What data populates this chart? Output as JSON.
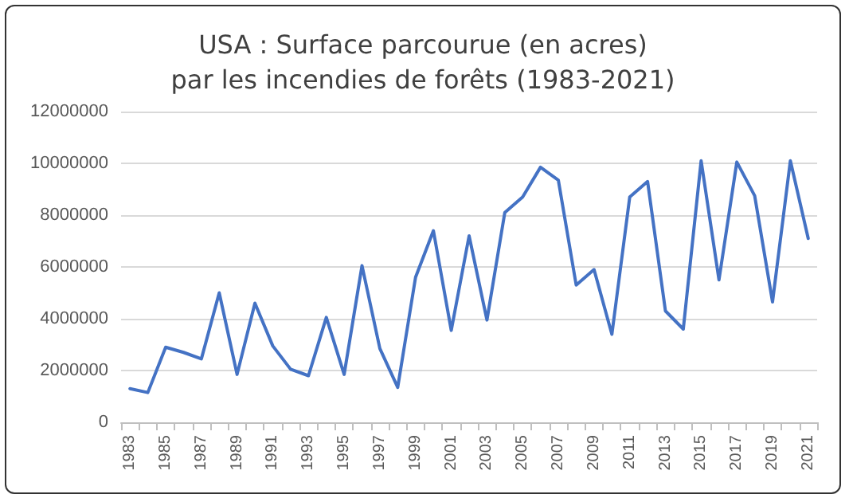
{
  "chart_data": {
    "type": "line",
    "title": "USA : Surface parcourue (en acres)\npar les incendies de forêts (1983-2021)",
    "categories": [
      "1983",
      null,
      "1985",
      null,
      "1987",
      null,
      "1989",
      null,
      "1991",
      null,
      "1993",
      null,
      "1995",
      null,
      "1997",
      null,
      "1999",
      null,
      "2001",
      null,
      "2003",
      null,
      "2005",
      null,
      "2007",
      null,
      "2009",
      null,
      "2011",
      null,
      "2013",
      null,
      "2015",
      null,
      "2017",
      null,
      "2019",
      null,
      "2021"
    ],
    "series": [
      {
        "color": "#4472c4",
        "values": [
          1300000,
          1150000,
          2900000,
          2700000,
          2450000,
          5000000,
          1850000,
          4600000,
          2950000,
          2050000,
          1800000,
          4050000,
          1850000,
          6050000,
          2850000,
          1350000,
          5600000,
          7400000,
          3550000,
          7200000,
          3950000,
          8100000,
          8700000,
          9850000,
          9350000,
          5300000,
          5900000,
          3400000,
          8700000,
          9300000,
          4300000,
          3600000,
          10100000,
          5500000,
          10050000,
          8750000,
          4650000,
          10100000,
          7100000
        ]
      }
    ],
    "ylim": [
      0,
      12000000
    ],
    "yticks": [
      0,
      2000000,
      4000000,
      6000000,
      8000000,
      10000000,
      12000000
    ],
    "grid": "y",
    "marker": "none",
    "line_style": "solid"
  }
}
